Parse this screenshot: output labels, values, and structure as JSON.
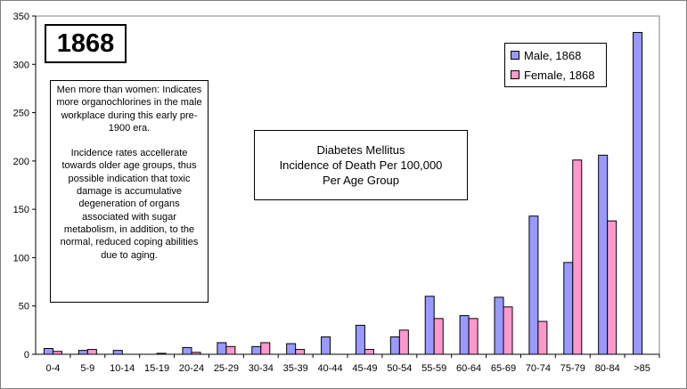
{
  "chart_data": {
    "type": "bar",
    "year_label": "1868",
    "title_lines": [
      "Diabetes Mellitus",
      "Incidence of Death Per 100,000",
      "Per Age Group"
    ],
    "categories": [
      "0-4",
      "5-9",
      "10-14",
      "15-19",
      "20-24",
      "25-29",
      "30-34",
      "35-39",
      "40-44",
      "45-49",
      "50-54",
      "55-59",
      "60-64",
      "65-69",
      "70-74",
      "75-79",
      "80-84",
      ">85"
    ],
    "series": [
      {
        "name": "Male, 1868",
        "color": "#9999ff",
        "values": [
          6,
          4,
          4,
          0,
          7,
          12,
          8,
          11,
          18,
          30,
          18,
          60,
          40,
          59,
          143,
          95,
          206,
          333
        ]
      },
      {
        "name": "Female, 1868",
        "color": "#ff99cc",
        "values": [
          3,
          5,
          0,
          1,
          2,
          8,
          12,
          5,
          0,
          5,
          25,
          37,
          37,
          49,
          34,
          201,
          138,
          null
        ]
      }
    ],
    "ylim": [
      0,
      350
    ],
    "yticks": [
      0,
      50,
      100,
      150,
      200,
      250,
      300,
      350
    ],
    "grid": false,
    "legend_position": "top-right",
    "annotation": {
      "paragraphs": [
        "Men more than women: Indicates more organochlorines in the male workplace during this early pre-1900 era.",
        "Incidence rates accellerate towards older age groups, thus possible indication that toxic damage is accumulative degeneration of organs associated with sugar metabolism, in addition, to the normal, reduced coping abilities due to aging."
      ]
    }
  }
}
